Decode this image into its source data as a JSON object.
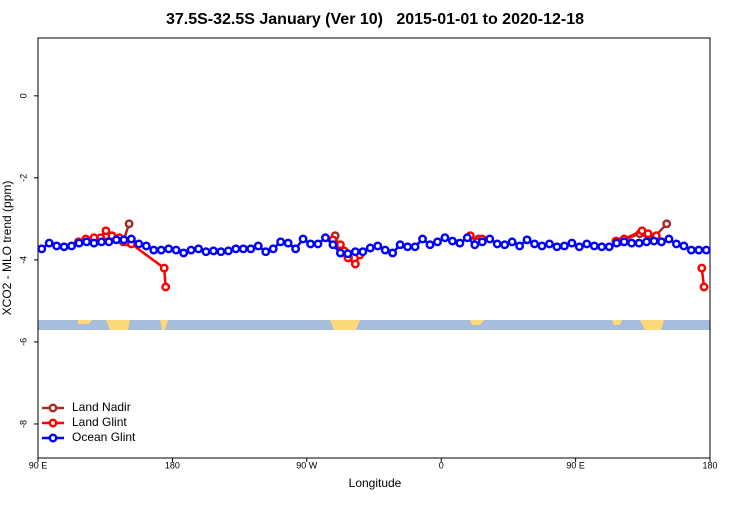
{
  "chart_data": {
    "type": "line",
    "title": "37.5S-32.5S January (Ver 10)   2015-01-01 to 2020-12-18",
    "x_label": "Longitude",
    "y_label": "XCO2 - MLO trend (ppm)",
    "xlim": [
      90,
      540
    ],
    "ylim": [
      -8.83,
      1.41
    ],
    "xticks": [
      {
        "value": 90,
        "label": "90 E"
      },
      {
        "value": 180,
        "label": "180"
      },
      {
        "value": 270,
        "label": "90 W"
      },
      {
        "value": 360,
        "label": "0"
      },
      {
        "value": 450,
        "label": "90 E"
      },
      {
        "value": 540,
        "label": "180"
      }
    ],
    "yticks": [
      0,
      -2,
      -4,
      -6,
      -8
    ],
    "legend": "bottom-left",
    "series": [
      {
        "name": "Land Nadir",
        "color": "#a52a2a",
        "x": [
          135.5,
          143,
          147,
          151,
          null,
          289,
          293,
          298,
          null,
          385,
          null,
          479,
          493,
          501,
          511
        ],
        "values": [
          -3.41,
          -3.49,
          -3.56,
          -3.12,
          null,
          -3.41,
          -3.83,
          -3.95,
          null,
          -3.49,
          null,
          -3.56,
          -3.36,
          -3.51,
          -3.12
        ]
      },
      {
        "name": "Land Glint",
        "color": "#ff0000",
        "x": [
          117,
          122,
          127.5,
          132,
          135.5,
          139.5,
          144.5,
          149.5,
          152.5,
          174.5,
          175.5,
          null,
          287.5,
          292.5,
          295,
          297.5,
          302.5,
          305.5,
          null,
          379.5,
          384,
          387.5,
          null,
          477,
          482.5,
          494.5,
          498.5,
          504,
          507.5,
          null,
          534.5,
          536
        ],
        "values": [
          -3.56,
          -3.49,
          -3.46,
          -3.46,
          -3.29,
          -3.41,
          -3.46,
          -3.56,
          -3.61,
          -4.2,
          -4.66,
          null,
          -3.51,
          -3.63,
          -3.78,
          -3.95,
          -4.1,
          -3.88,
          null,
          -3.41,
          -3.56,
          -3.49,
          null,
          -3.54,
          -3.49,
          -3.29,
          -3.36,
          -3.41,
          -3.56,
          null,
          -4.2,
          -4.66
        ]
      },
      {
        "name": "Ocean Glint",
        "color": "#0000ff",
        "x": [
          92.5,
          97.5,
          102.5,
          107.5,
          112.5,
          117.5,
          122.5,
          127.5,
          132.5,
          137.5,
          142.5,
          147.5,
          152.5,
          157.5,
          162.5,
          167.5,
          172.5,
          177.5,
          182.5,
          187.5,
          192.5,
          197.5,
          202.5,
          207.5,
          212.5,
          217.5,
          222.5,
          227.5,
          232.5,
          237.5,
          242.5,
          247.5,
          252.5,
          257.5,
          262.5,
          267.5,
          272.5,
          277.5,
          282.5,
          287.5,
          292.5,
          297.5,
          302.5,
          307.5,
          312.5,
          317.5,
          322.5,
          327.5,
          332.5,
          337.5,
          342.5,
          347.5,
          352.5,
          357.5,
          362.5,
          367.5,
          372.5,
          377.5,
          382.5,
          387.5,
          392.5,
          397.5,
          402.5,
          407.5,
          412.5,
          417.5,
          422.5,
          427.5,
          432.5,
          437.5,
          442.5,
          447.5,
          452.5,
          457.5,
          462.5,
          467.5,
          472.5,
          477.5,
          482.5,
          487.5,
          492.5,
          497.5,
          502.5,
          507.5,
          512.5,
          517.5,
          522.5,
          527.5,
          532.5,
          537.5
        ],
        "values": [
          -3.73,
          -3.59,
          -3.66,
          -3.68,
          -3.66,
          -3.59,
          -3.56,
          -3.59,
          -3.56,
          -3.56,
          -3.51,
          -3.51,
          -3.49,
          -3.61,
          -3.66,
          -3.76,
          -3.76,
          -3.73,
          -3.76,
          -3.83,
          -3.76,
          -3.73,
          -3.8,
          -3.78,
          -3.8,
          -3.78,
          -3.73,
          -3.73,
          -3.73,
          -3.66,
          -3.8,
          -3.73,
          -3.56,
          -3.59,
          -3.73,
          -3.49,
          -3.61,
          -3.61,
          -3.46,
          -3.63,
          -3.83,
          -3.85,
          -3.8,
          -3.8,
          -3.71,
          -3.66,
          -3.76,
          -3.83,
          -3.63,
          -3.68,
          -3.68,
          -3.49,
          -3.63,
          -3.56,
          -3.46,
          -3.54,
          -3.59,
          -3.46,
          -3.63,
          -3.56,
          -3.49,
          -3.61,
          -3.63,
          -3.56,
          -3.66,
          -3.51,
          -3.61,
          -3.66,
          -3.61,
          -3.68,
          -3.66,
          -3.59,
          -3.68,
          -3.61,
          -3.66,
          -3.68,
          -3.68,
          -3.59,
          -3.56,
          -3.59,
          -3.59,
          -3.56,
          -3.54,
          -3.56,
          -3.49,
          -3.61,
          -3.66,
          -3.76,
          -3.76,
          -3.76
        ]
      }
    ]
  }
}
